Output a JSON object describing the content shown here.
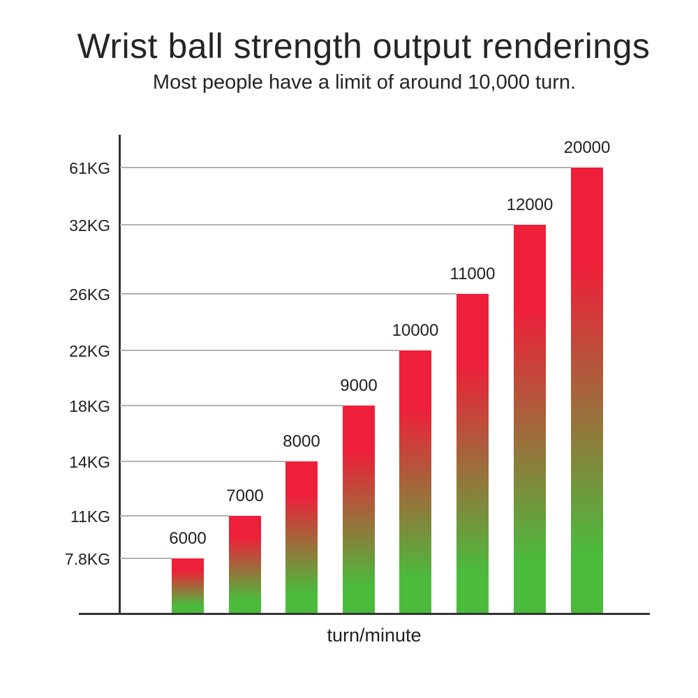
{
  "page": {
    "background_color": "#ffffff",
    "text_color": "#252525"
  },
  "header": {
    "title": "Wrist ball strength output renderings",
    "subtitle": "Most people have a limit of around 10,000 turn."
  },
  "chart_data": {
    "type": "bar",
    "title": "Wrist ball strength output renderings",
    "subtitle": "Most people have a limit of around 10,000 turn.",
    "xlabel": "turn/minute",
    "ylabel": "",
    "categories": [
      "6000",
      "7000",
      "8000",
      "9000",
      "10000",
      "11000",
      "12000",
      "20000"
    ],
    "values_kg": [
      7.8,
      11,
      14,
      18,
      22,
      26,
      32,
      61
    ],
    "y_tick_labels": [
      "7.8KG",
      "11KG",
      "14KG",
      "18KG",
      "22KG",
      "26KG",
      "32KG",
      "61KG"
    ],
    "bar_value_labels": [
      "6000",
      "7000",
      "8000",
      "9000",
      "10000",
      "11000",
      "12000",
      "20000"
    ],
    "axis_scale": "ordinal-nonlinear (one tick per bar top)",
    "grid": "one horizontal leader line from y-axis to each bar top",
    "legend": "none",
    "colors": {
      "bar_gradient_top": "#ee1f3a",
      "bar_gradient_bottom": "#4bbb3c",
      "axis_line": "#323232",
      "gridline": "#b2b2b2",
      "label_text": "#1f1f1f"
    }
  }
}
